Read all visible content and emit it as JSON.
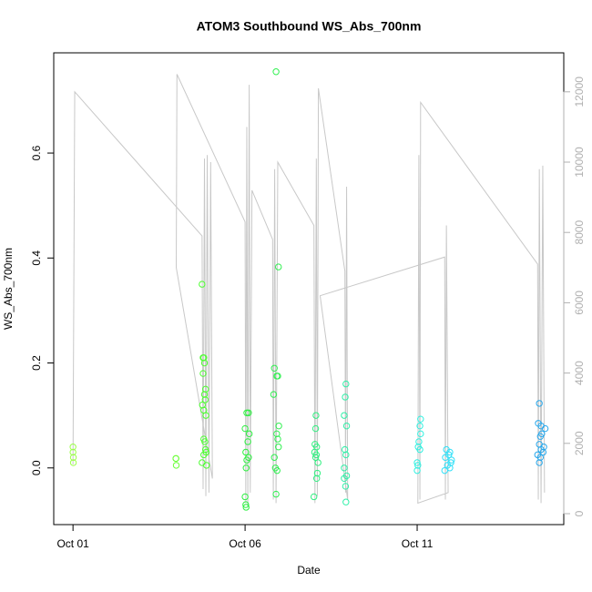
{
  "chart_data": {
    "type": "scatter",
    "title": "ATOM3 Southbound WS_Abs_700nm",
    "x_label": "Date",
    "y_label": "WS_Abs_700nm",
    "xlim": [
      -0.56,
      14.26
    ],
    "xticks": [
      {
        "value": 0,
        "label": "Oct 01"
      },
      {
        "value": 5,
        "label": "Oct 06"
      },
      {
        "value": 10,
        "label": "Oct 11"
      }
    ],
    "ylim": [
      -0.108,
      0.791
    ],
    "yticks": [
      {
        "value": 0,
        "label": "0.0"
      },
      0.2,
      0.4,
      0.6
    ],
    "y2lim": [
      -311,
      13109
    ],
    "y2ticks": [
      0,
      2000,
      4000,
      6000,
      8000,
      10000,
      12000
    ],
    "y2_color": "#b0b0b0",
    "series": [
      {
        "x": [
          0,
          0,
          0.01,
          0.01,
          2.99,
          2.99,
          3.0,
          3.75,
          3.78,
          3.8,
          3.82,
          3.78,
          3.85,
          3.82,
          3.84,
          3.76,
          3.8,
          3.86,
          3.8,
          3.83,
          3.85,
          3.87,
          3.8,
          3.75,
          3.88,
          5.05,
          5.1,
          5.0,
          5.12,
          5.08,
          5.02,
          5.1,
          5.05,
          5.03,
          5.0,
          5.02,
          5.03,
          5.9,
          5.97,
          5.85,
          5.92,
          5.95,
          5.83,
          5.98,
          5.92,
          5.95,
          5.97,
          5.85,
          5.88,
          5.93,
          5.9,
          7.06,
          7.05,
          7.03,
          7.08,
          7.02,
          7.07,
          7.05,
          7.12,
          7.1,
          7.08,
          7.0,
          7.93,
          7.91,
          7.88,
          7.95,
          7.9,
          7.93,
          7.88,
          7.95,
          7.88,
          7.92,
          7.93,
          10.1,
          10.08,
          10.1,
          10.05,
          10.03,
          10.08,
          10.0,
          10.02,
          10.0,
          10.85,
          10.95,
          10.92,
          10.82,
          11.0,
          10.98,
          10.88,
          10.95,
          10.8,
          13.55,
          13.52,
          13.6,
          13.62,
          13.58,
          13.55,
          13.68,
          13.6,
          13.66,
          13.5,
          13.58,
          13.55,
          13.72
        ],
        "values": [
          0.03,
          0.04,
          0.02,
          0.01,
          0.018,
          0.018,
          0.005,
          0.35,
          0.21,
          0.21,
          0.2,
          0.18,
          0.15,
          0.14,
          0.13,
          0.12,
          0.11,
          0.1,
          0.055,
          0.05,
          0.035,
          0.03,
          0.025,
          0.01,
          0.005,
          0.105,
          0.105,
          0.075,
          0.065,
          0.05,
          0.03,
          0.02,
          0.015,
          0.0,
          -0.055,
          -0.07,
          -0.075,
          0.755,
          0.383,
          0.19,
          0.175,
          0.175,
          0.14,
          0.08,
          0.065,
          0.055,
          0.04,
          0.02,
          0.0,
          -0.005,
          -0.05,
          0.1,
          0.075,
          0.045,
          0.04,
          0.03,
          0.025,
          0.02,
          0.01,
          -0.01,
          -0.02,
          -0.055,
          0.16,
          0.135,
          0.1,
          0.08,
          0.035,
          0.025,
          0.0,
          -0.015,
          -0.02,
          -0.035,
          -0.065,
          0.093,
          0.08,
          0.065,
          0.05,
          0.04,
          0.035,
          0.01,
          0.005,
          -0.005,
          0.035,
          0.03,
          0.025,
          0.02,
          0.015,
          0.01,
          0.005,
          0.0,
          -0.005,
          0.123,
          0.085,
          0.08,
          0.065,
          0.06,
          0.045,
          0.04,
          0.035,
          0.03,
          0.025,
          0.02,
          0.01,
          0.075
        ],
        "colors": [
          "#9cff4a",
          "#9cff4a",
          "#9cff4a",
          "#9cff4a",
          "#6cff3a",
          "#6cff3a",
          "#6cff3a",
          "#4cff30",
          "#4cff30",
          "#4cff30",
          "#4cff30",
          "#4cff30",
          "#4cff30",
          "#4cff30",
          "#4cff30",
          "#4cff30",
          "#4cff30",
          "#4cff30",
          "#4cff30",
          "#4cff30",
          "#4cff30",
          "#4cff30",
          "#4cff30",
          "#4cff30",
          "#4cff30",
          "#2cf040",
          "#2cf040",
          "#2cf040",
          "#2cf040",
          "#2cf040",
          "#2cf040",
          "#2cf040",
          "#2cf040",
          "#2cf040",
          "#2cf040",
          "#2cf040",
          "#2cf040",
          "#30f050",
          "#30f050",
          "#30f050",
          "#30f050",
          "#30f050",
          "#30f050",
          "#30f050",
          "#30f050",
          "#30f050",
          "#30f050",
          "#30f050",
          "#30f050",
          "#30f050",
          "#30f050",
          "#30f080",
          "#30f080",
          "#30f080",
          "#30f080",
          "#30f080",
          "#30f080",
          "#30f080",
          "#30f080",
          "#30f080",
          "#30f080",
          "#30f080",
          "#30f0a8",
          "#30f0a8",
          "#30f0a8",
          "#30f0a8",
          "#30f0a8",
          "#30f0a8",
          "#30f0a8",
          "#30f0a8",
          "#30f0a8",
          "#30f0a8",
          "#30f0a8",
          "#30f0e0",
          "#30f0e0",
          "#30f0e0",
          "#30f0e0",
          "#30f0e0",
          "#30f0e0",
          "#30f0e0",
          "#30f0e0",
          "#30f0e0",
          "#30e0f8",
          "#30e0f8",
          "#30e0f8",
          "#30e0f8",
          "#30e0f8",
          "#30e0f8",
          "#30e0f8",
          "#30e0f8",
          "#30e0f8",
          "#28a8ec",
          "#28a8ec",
          "#28a8ec",
          "#28a8ec",
          "#28a8ec",
          "#28a8ec",
          "#28a8ec",
          "#28a8ec",
          "#28a8ec",
          "#28a8ec",
          "#28a8ec",
          "#28a8ec",
          "#28a8ec"
        ]
      },
      {
        "kind": "line",
        "axis": "y2",
        "color": "#c8c8c8",
        "x": [
          0,
          0.05,
          3.75,
          3.78,
          3.82,
          3.86,
          3.9,
          3.95,
          4.0,
          4.05,
          3.0,
          3.02,
          5.0,
          5.02,
          5.05,
          5.08,
          5.12,
          5.15,
          5.2,
          5.8,
          5.82,
          5.86,
          5.9,
          5.95,
          7.0,
          7.03,
          7.07,
          7.1,
          7.13,
          7.9,
          7.92,
          7.95,
          7.98,
          7.18,
          10.8,
          10.82,
          10.85,
          10.9,
          10.02,
          10.05,
          10.08,
          10.1,
          13.5,
          13.52,
          13.55,
          13.6,
          13.65,
          13.7
        ],
        "values": [
          1400,
          12000,
          7900,
          700,
          10100,
          500,
          10200,
          600,
          10000,
          1000,
          7000,
          12500,
          8300,
          300,
          11000,
          200,
          12200,
          600,
          9200,
          7800,
          400,
          9800,
          300,
          10000,
          8200,
          300,
          10100,
          500,
          12100,
          6900,
          600,
          9300,
          400,
          6200,
          7300,
          400,
          8200,
          600,
          300,
          10200,
          400,
          11700,
          7100,
          400,
          9800,
          300,
          9900,
          600
        ]
      }
    ]
  }
}
